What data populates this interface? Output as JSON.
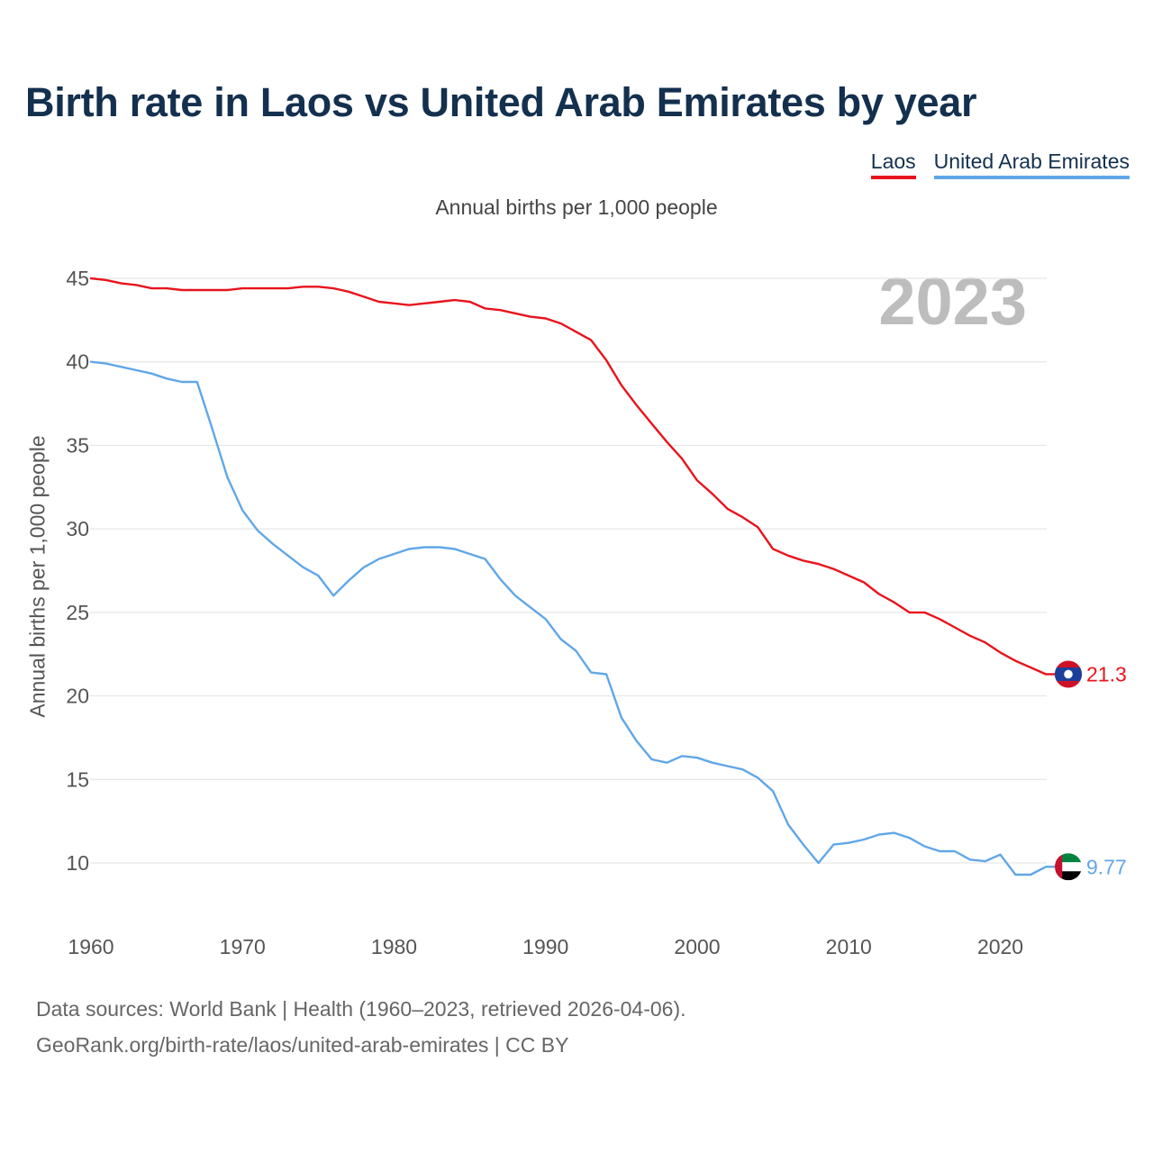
{
  "title": "Birth rate in Laos vs United Arab Emirates by year",
  "subtitle": "Annual births per 1,000 people",
  "year_badge": "2023",
  "legend": [
    {
      "label": "Laos",
      "color": "#e8141c"
    },
    {
      "label": "United Arab Emirates",
      "color": "#60a7e8"
    }
  ],
  "source_line1": "Data sources: World Bank | Health (1960–2023, retrieved 2026-04-06).",
  "source_line2": "GeoRank.org/birth-rate/laos/united-arab-emirates | CC BY",
  "end_labels": {
    "laos": "21.3",
    "uae": "9.77"
  },
  "chart_data": {
    "type": "line",
    "title": "Birth rate in Laos vs United Arab Emirates by year",
    "xlabel": "",
    "ylabel": "Annual births per 1,000 people",
    "xlim": [
      1960,
      2023
    ],
    "ylim": [
      7,
      46
    ],
    "x_ticks": [
      "1960",
      "1970",
      "1980",
      "1990",
      "2000",
      "2010",
      "2020"
    ],
    "y_ticks": [
      "10",
      "15",
      "20",
      "25",
      "30",
      "35",
      "40",
      "45"
    ],
    "x": [
      1960,
      1961,
      1962,
      1963,
      1964,
      1965,
      1966,
      1967,
      1968,
      1969,
      1970,
      1971,
      1972,
      1973,
      1974,
      1975,
      1976,
      1977,
      1978,
      1979,
      1980,
      1981,
      1982,
      1983,
      1984,
      1985,
      1986,
      1987,
      1988,
      1989,
      1990,
      1991,
      1992,
      1993,
      1994,
      1995,
      1996,
      1997,
      1998,
      1999,
      2000,
      2001,
      2002,
      2003,
      2004,
      2005,
      2006,
      2007,
      2008,
      2009,
      2010,
      2011,
      2012,
      2013,
      2014,
      2015,
      2016,
      2017,
      2018,
      2019,
      2020,
      2021,
      2022,
      2023
    ],
    "series": [
      {
        "name": "Laos",
        "color": "#e8141c",
        "values": [
          45.0,
          44.9,
          44.7,
          44.6,
          44.4,
          44.4,
          44.3,
          44.3,
          44.3,
          44.3,
          44.4,
          44.4,
          44.4,
          44.4,
          44.5,
          44.5,
          44.4,
          44.2,
          43.9,
          43.6,
          43.5,
          43.4,
          43.5,
          43.6,
          43.7,
          43.6,
          43.2,
          43.1,
          42.9,
          42.7,
          42.6,
          42.3,
          41.8,
          41.3,
          40.1,
          38.6,
          37.4,
          36.3,
          35.2,
          34.2,
          32.9,
          32.1,
          31.2,
          30.7,
          30.1,
          28.8,
          28.4,
          28.1,
          27.9,
          27.6,
          27.2,
          26.8,
          26.1,
          25.6,
          25.0,
          25.0,
          24.6,
          24.1,
          23.6,
          23.2,
          22.6,
          22.1,
          21.7,
          21.3
        ]
      },
      {
        "name": "United Arab Emirates",
        "color": "#60a7e8",
        "values": [
          40.0,
          39.9,
          39.7,
          39.5,
          39.3,
          39.0,
          38.8,
          38.8,
          36.0,
          33.1,
          31.1,
          29.9,
          29.1,
          28.4,
          27.7,
          27.2,
          26.0,
          26.9,
          27.7,
          28.2,
          28.5,
          28.8,
          28.9,
          28.9,
          28.8,
          28.5,
          28.2,
          27.0,
          26.0,
          25.3,
          24.6,
          23.4,
          22.7,
          21.4,
          21.3,
          18.7,
          17.3,
          16.2,
          16.0,
          16.4,
          16.3,
          16.0,
          15.8,
          15.6,
          15.1,
          14.3,
          12.3,
          11.1,
          10.0,
          11.1,
          11.2,
          11.4,
          11.7,
          11.8,
          11.5,
          11.0,
          10.7,
          10.7,
          10.2,
          10.1,
          10.5,
          9.3,
          9.3,
          9.77
        ]
      }
    ]
  }
}
